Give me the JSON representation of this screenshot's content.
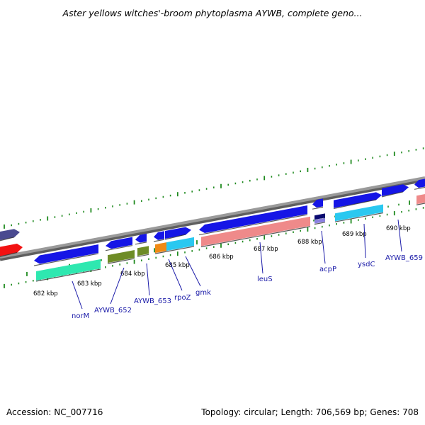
{
  "title": "Aster yellows witches'-broom phytoplasma AYWB, complete geno...",
  "footer": {
    "accession": "Accession: NC_007716",
    "topology": "Topology: circular; Length: 706,569 bp; Genes: 708"
  },
  "kbp_labels": [
    "682 kbp",
    "683 kbp",
    "684 kbp",
    "685 kbp",
    "686 kbp",
    "687 kbp",
    "688 kbp",
    "689 kbp",
    "690 kbp"
  ],
  "gene_labels": [
    "norM",
    "AYWB_652",
    "AYWB_653",
    "rpoZ",
    "gmk",
    "leuS",
    "acpP",
    "ysdC",
    "AYWB_659"
  ],
  "colors": {
    "cds": "#1515e6",
    "backbone": "#8c8c8c",
    "tick": "#1f8a1f",
    "label": "#1a1aa8",
    "red_gene": "#f21212",
    "purple_gene": "#4a4a90",
    "teal_bar": "#2ee8b0",
    "olive_bar": "#6e8c26",
    "orange_bar": "#f08a14",
    "cyan_bar": "#2ac8f0",
    "pink_bar": "#ef8a8a",
    "light_purple_bar": "#8a80e0"
  }
}
